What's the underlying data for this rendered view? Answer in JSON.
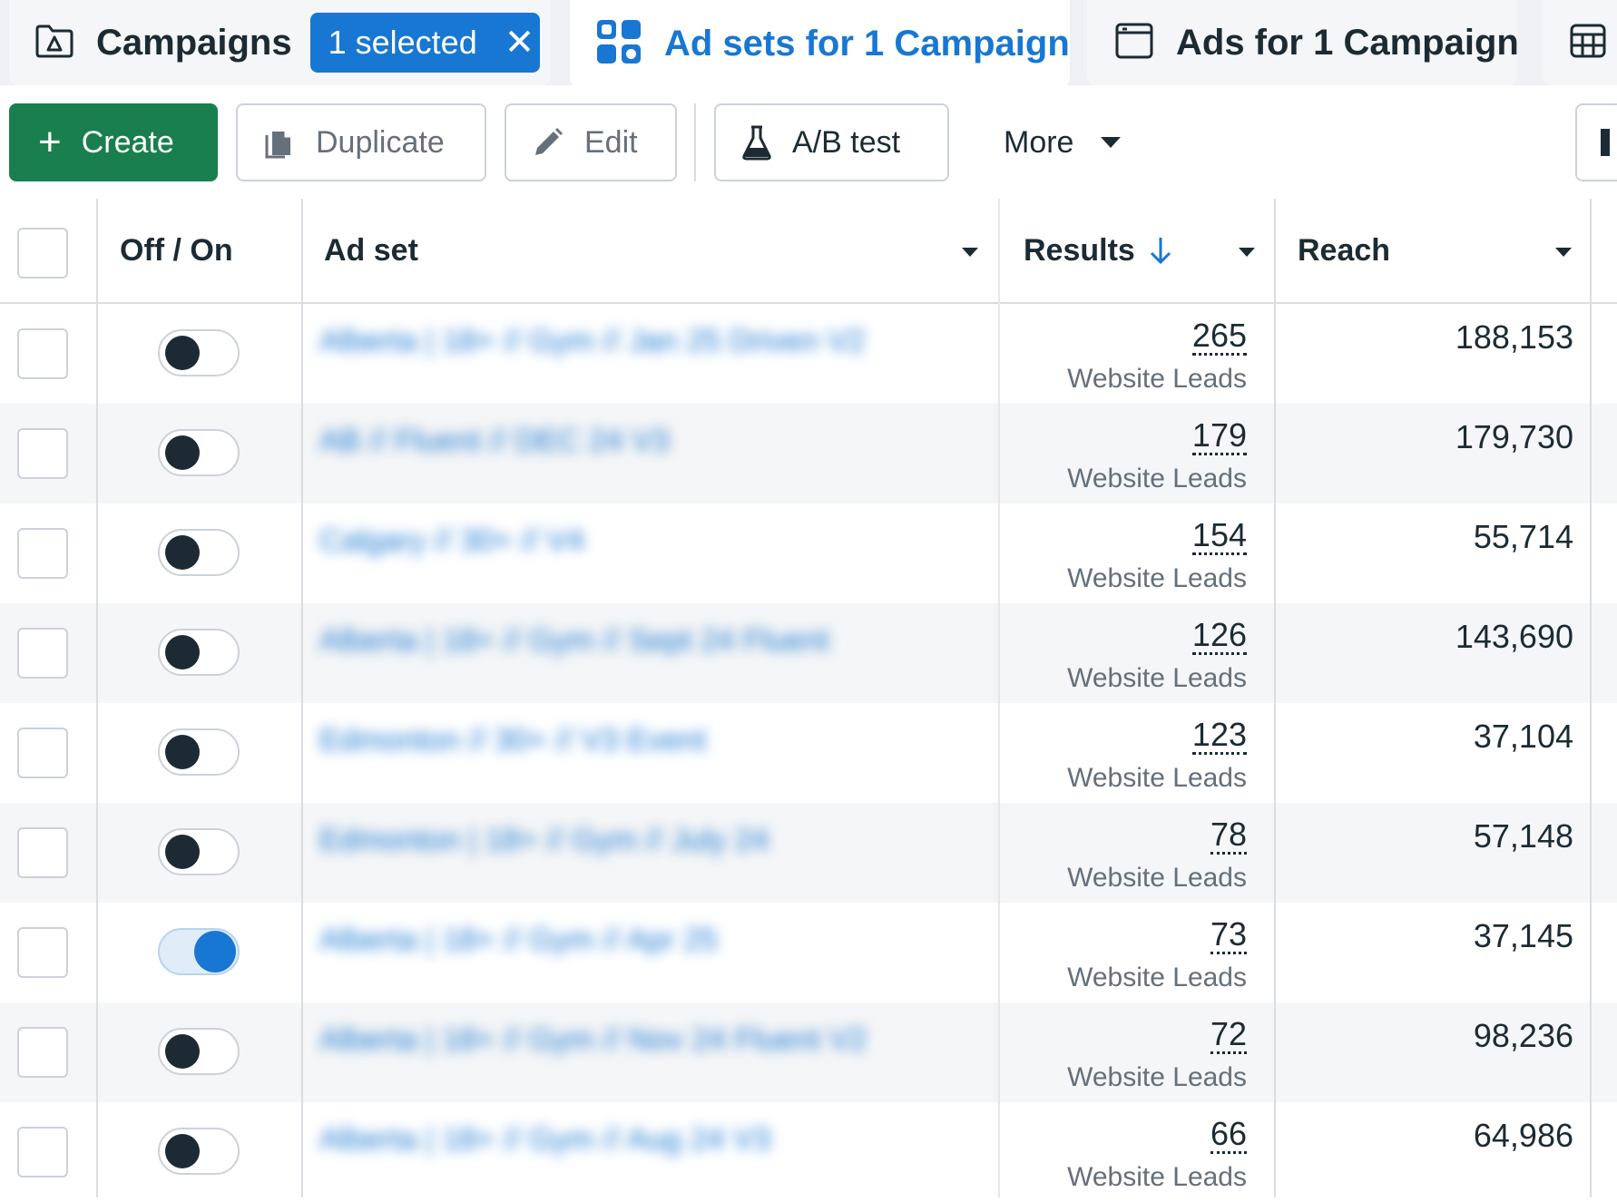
{
  "tabs": {
    "campaigns": {
      "label": "Campaigns",
      "selected_label": "1 selected",
      "clear_symbol": "✕"
    },
    "adsets": {
      "label": "Ad sets for 1 Campaign"
    },
    "ads": {
      "label": "Ads for 1 Campaign"
    }
  },
  "toolbar": {
    "create_label": "Create",
    "duplicate_label": "Duplicate",
    "edit_label": "Edit",
    "ab_test_label": "A/B test",
    "more_label": "More"
  },
  "table": {
    "headers": {
      "toggle": "Off / On",
      "adset": "Ad set",
      "results": "Results",
      "reach": "Reach"
    },
    "rows": [
      {
        "name": "Alberta | 18+ // Gym // Jan 25 Driven V2",
        "results": "265",
        "results_type": "Website Leads",
        "reach": "188,153",
        "on": false
      },
      {
        "name": "AB // Fluent // DEC 24 V3",
        "results": "179",
        "results_type": "Website Leads",
        "reach": "179,730",
        "on": false
      },
      {
        "name": "Calgary // 30+ // V4",
        "results": "154",
        "results_type": "Website Leads",
        "reach": "55,714",
        "on": false
      },
      {
        "name": "Alberta | 18+ // Gym // Sept 24 Fluent",
        "results": "126",
        "results_type": "Website Leads",
        "reach": "143,690",
        "on": false
      },
      {
        "name": "Edmonton // 30+ // V3 Event",
        "results": "123",
        "results_type": "Website Leads",
        "reach": "37,104",
        "on": false
      },
      {
        "name": "Edmonton | 18+ // Gym // July 24",
        "results": "78",
        "results_type": "Website Leads",
        "reach": "57,148",
        "on": false
      },
      {
        "name": "Alberta | 18+ // Gym // Apr 25",
        "results": "73",
        "results_type": "Website Leads",
        "reach": "37,145",
        "on": true
      },
      {
        "name": "Alberta | 18+ // Gym // Nov 24 Fluent V2",
        "results": "72",
        "results_type": "Website Leads",
        "reach": "98,236",
        "on": false
      },
      {
        "name": "Alberta | 18+ // Gym // Aug 24 V3",
        "results": "66",
        "results_type": "Website Leads",
        "reach": "64,986",
        "on": false
      }
    ]
  },
  "colors": {
    "accent": "#1877d2",
    "create": "#1a7f4e",
    "text": "#1c2b33",
    "muted": "#65707a"
  }
}
